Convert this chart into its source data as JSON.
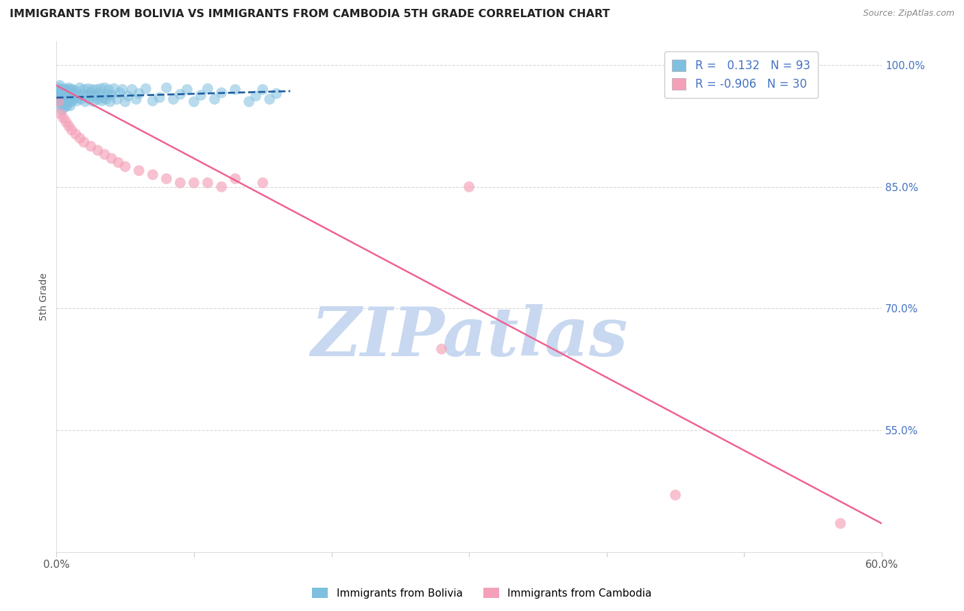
{
  "title": "IMMIGRANTS FROM BOLIVIA VS IMMIGRANTS FROM CAMBODIA 5TH GRADE CORRELATION CHART",
  "source": "Source: ZipAtlas.com",
  "ylabel": "5th Grade",
  "right_yticks": [
    100.0,
    85.0,
    70.0,
    55.0
  ],
  "bolivia_R": 0.132,
  "bolivia_N": 93,
  "cambodia_R": -0.906,
  "cambodia_N": 30,
  "bolivia_color": "#7fbfdf",
  "cambodia_color": "#f4a0b8",
  "bolivia_line_color": "#2060a0",
  "cambodia_line_color": "#f06090",
  "watermark_color": "#c8d8f0",
  "background_color": "#ffffff",
  "grid_color": "#cccccc",
  "xlim": [
    0.0,
    60.0
  ],
  "ylim": [
    40.0,
    103.0
  ],
  "bolivia_x": [
    0.05,
    0.08,
    0.1,
    0.12,
    0.15,
    0.18,
    0.2,
    0.22,
    0.25,
    0.28,
    0.3,
    0.35,
    0.4,
    0.45,
    0.5,
    0.55,
    0.6,
    0.65,
    0.7,
    0.75,
    0.8,
    0.85,
    0.9,
    0.95,
    1.0,
    1.05,
    1.1,
    1.15,
    1.2,
    1.25,
    1.3,
    1.4,
    1.5,
    1.6,
    1.7,
    1.8,
    1.9,
    2.0,
    2.1,
    2.2,
    2.3,
    2.4,
    2.5,
    2.6,
    2.7,
    2.8,
    2.9,
    3.0,
    3.1,
    3.2,
    3.3,
    3.4,
    3.5,
    3.6,
    3.7,
    3.8,
    3.9,
    4.0,
    4.2,
    4.4,
    4.6,
    4.8,
    5.0,
    5.2,
    5.5,
    5.8,
    6.0,
    6.5,
    7.0,
    7.5,
    8.0,
    8.5,
    9.0,
    9.5,
    10.0,
    10.5,
    11.0,
    11.5,
    12.0,
    13.0,
    14.0,
    14.5,
    15.0,
    15.5,
    16.0,
    0.3,
    0.4,
    0.5,
    0.6,
    0.7,
    0.8,
    0.9,
    1.0
  ],
  "bolivia_y": [
    96.5,
    97.0,
    96.0,
    95.5,
    96.8,
    97.2,
    95.8,
    96.3,
    97.5,
    96.0,
    95.5,
    96.2,
    97.0,
    95.8,
    96.5,
    97.1,
    96.0,
    95.7,
    96.8,
    97.0,
    95.5,
    96.3,
    97.2,
    95.8,
    96.6,
    97.0,
    95.5,
    96.2,
    97.0,
    95.8,
    96.5,
    96.8,
    95.6,
    96.0,
    97.2,
    95.8,
    96.4,
    97.0,
    95.5,
    96.3,
    97.1,
    95.8,
    96.6,
    97.0,
    95.5,
    96.2,
    97.0,
    95.8,
    96.5,
    97.1,
    95.6,
    96.0,
    97.2,
    95.8,
    96.4,
    97.0,
    95.5,
    96.3,
    97.1,
    95.8,
    96.6,
    97.0,
    95.5,
    96.2,
    97.0,
    95.8,
    96.5,
    97.1,
    95.6,
    96.0,
    97.2,
    95.8,
    96.4,
    97.0,
    95.5,
    96.3,
    97.1,
    95.8,
    96.6,
    97.0,
    95.5,
    96.2,
    97.0,
    95.8,
    96.5,
    95.0,
    94.5,
    95.2,
    94.8,
    95.3,
    95.0,
    95.5,
    95.0
  ],
  "cambodia_x": [
    0.15,
    0.3,
    0.5,
    0.7,
    0.9,
    1.1,
    1.4,
    1.7,
    2.0,
    2.5,
    3.0,
    3.5,
    4.0,
    4.5,
    5.0,
    6.0,
    7.0,
    8.0,
    9.0,
    10.0,
    11.0,
    12.0,
    13.0,
    15.0,
    28.0,
    30.0,
    45.0,
    57.0
  ],
  "cambodia_y": [
    95.5,
    94.0,
    93.5,
    93.0,
    92.5,
    92.0,
    91.5,
    91.0,
    90.5,
    90.0,
    89.5,
    89.0,
    88.5,
    88.0,
    87.5,
    87.0,
    86.5,
    86.0,
    85.5,
    85.5,
    85.5,
    85.0,
    86.0,
    85.5,
    65.0,
    85.0,
    47.0,
    43.5
  ],
  "bolivia_trendline_x": [
    0.0,
    17.0
  ],
  "bolivia_trendline_y": [
    96.0,
    96.8
  ],
  "cambodia_trendline_x": [
    0.0,
    60.0
  ],
  "cambodia_trendline_y": [
    97.5,
    43.5
  ]
}
